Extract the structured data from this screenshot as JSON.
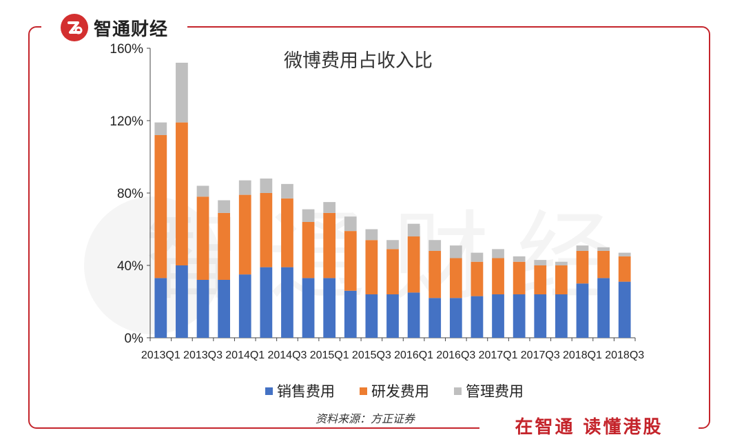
{
  "brand": {
    "name": "智通财经",
    "slogan": "在智通 读懂港股",
    "accent": "#c4242b",
    "logo_mark": "zhitong-logo-icon"
  },
  "watermark_text": "智通财经",
  "source_text": "资料来源：方正证券",
  "chart_data": {
    "type": "bar",
    "stacked": true,
    "title": "微博费用占收入比",
    "xlabel": "",
    "ylabel": "",
    "ylim": [
      0,
      160
    ],
    "yticks": [
      0,
      40,
      80,
      120,
      160
    ],
    "ytick_labels": [
      "0%",
      "40%",
      "80%",
      "120%",
      "160%"
    ],
    "categories": [
      "2013Q1",
      "2013Q2",
      "2013Q3",
      "2013Q4",
      "2014Q1",
      "2014Q2",
      "2014Q3",
      "2014Q4",
      "2015Q1",
      "2015Q2",
      "2015Q3",
      "2015Q4",
      "2016Q1",
      "2016Q2",
      "2016Q3",
      "2016Q4",
      "2017Q1",
      "2017Q2",
      "2017Q3",
      "2017Q4",
      "2018Q1",
      "2018Q2",
      "2018Q3"
    ],
    "xtick_labels": [
      "2013Q1",
      "2013Q3",
      "2014Q1",
      "2014Q3",
      "2015Q1",
      "2015Q3",
      "2016Q1",
      "2016Q3",
      "2017Q1",
      "2017Q3",
      "2018Q1",
      "2018Q3"
    ],
    "series": [
      {
        "name": "销售费用",
        "color": "#4472c4",
        "values": [
          33,
          40,
          32,
          32,
          35,
          39,
          39,
          33,
          33,
          26,
          24,
          24,
          25,
          22,
          22,
          23,
          24,
          24,
          24,
          24,
          30,
          33,
          31
        ]
      },
      {
        "name": "研发费用",
        "color": "#ed7d31",
        "values": [
          79,
          79,
          46,
          37,
          44,
          41,
          38,
          31,
          36,
          33,
          30,
          25,
          31,
          26,
          22,
          19,
          20,
          18,
          16,
          16,
          18,
          15,
          14
        ]
      },
      {
        "name": "管理费用",
        "color": "#bfbfbf",
        "values": [
          7,
          33,
          6,
          7,
          8,
          8,
          8,
          7,
          6,
          8,
          6,
          5,
          7,
          6,
          7,
          5,
          5,
          3,
          3,
          2,
          3,
          2,
          2
        ]
      }
    ],
    "legend_position": "bottom",
    "grid": false
  }
}
